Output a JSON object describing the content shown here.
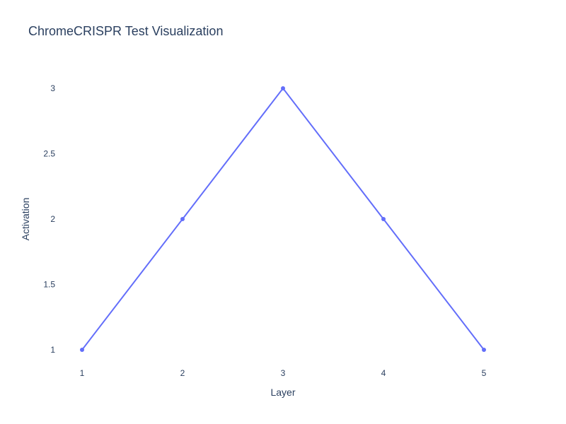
{
  "chart_data": {
    "type": "line",
    "title": "ChromeCRISPR Test Visualization",
    "xlabel": "Layer",
    "ylabel": "Activation",
    "x": [
      1,
      2,
      3,
      4,
      5
    ],
    "series": [
      {
        "values": [
          1,
          2,
          3,
          2,
          1
        ],
        "color": "#636efa",
        "mode": "lines+markers"
      }
    ],
    "xlim": [
      1,
      5
    ],
    "ylim": [
      1,
      3
    ],
    "xticks": [
      1,
      2,
      3,
      4,
      5
    ],
    "xtick_labels": [
      "1",
      "2",
      "3",
      "4",
      "5"
    ],
    "yticks": [
      1,
      1.5,
      2,
      2.5,
      3
    ],
    "ytick_labels": [
      "1",
      "1.5",
      "2",
      "2.5",
      "3"
    ],
    "grid": false,
    "legend": "none"
  }
}
